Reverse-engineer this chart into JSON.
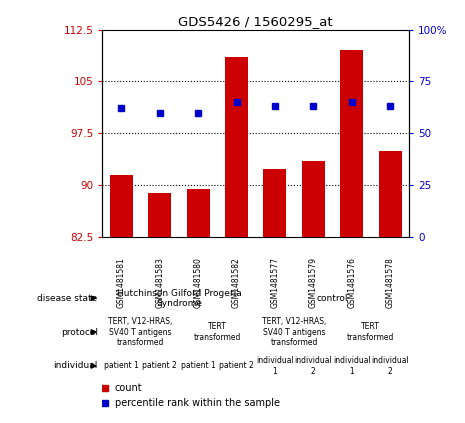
{
  "title": "GDS5426 / 1560295_at",
  "samples": [
    "GSM1481581",
    "GSM1481583",
    "GSM1481580",
    "GSM1481582",
    "GSM1481577",
    "GSM1481579",
    "GSM1481576",
    "GSM1481578"
  ],
  "counts": [
    91.5,
    88.8,
    89.5,
    108.5,
    92.3,
    93.5,
    109.5,
    95.0
  ],
  "percentiles": [
    62,
    60,
    60,
    65,
    63,
    63,
    65,
    63
  ],
  "ymin": 82.5,
  "ymax": 112.5,
  "yticks": [
    82.5,
    90,
    97.5,
    105,
    112.5
  ],
  "y2ticks": [
    0,
    25,
    50,
    75,
    100
  ],
  "bar_color": "#cc0000",
  "dot_color": "#0000cc",
  "disease_state_groups": [
    {
      "label": "Hutchinson Gilford Progeria\nSyndrome",
      "start": 0,
      "end": 4,
      "color": "#99dd99"
    },
    {
      "label": "control",
      "start": 4,
      "end": 8,
      "color": "#66dd66"
    }
  ],
  "protocol_groups": [
    {
      "label": "TERT, V12-HRAS,\nSV40 T antigens\ntransformed",
      "start": 0,
      "end": 2,
      "color": "#ccccee"
    },
    {
      "label": "TERT\ntransformed",
      "start": 2,
      "end": 4,
      "color": "#8888cc"
    },
    {
      "label": "TERT, V12-HRAS,\nSV40 T antigens\ntransformed",
      "start": 4,
      "end": 6,
      "color": "#ccccee"
    },
    {
      "label": "TERT\ntransformed",
      "start": 6,
      "end": 8,
      "color": "#8888cc"
    }
  ],
  "individual_groups": [
    {
      "label": "patient 1",
      "start": 0,
      "end": 1,
      "color": "#ffcccc"
    },
    {
      "label": "patient 2",
      "start": 1,
      "end": 2,
      "color": "#ffcccc"
    },
    {
      "label": "patient 1",
      "start": 2,
      "end": 3,
      "color": "#ffcccc"
    },
    {
      "label": "patient 2",
      "start": 3,
      "end": 4,
      "color": "#ffcccc"
    },
    {
      "label": "individual\n1",
      "start": 4,
      "end": 5,
      "color": "#ff9988"
    },
    {
      "label": "individual\n2",
      "start": 5,
      "end": 6,
      "color": "#ff9988"
    },
    {
      "label": "individual\n1",
      "start": 6,
      "end": 7,
      "color": "#ff9988"
    },
    {
      "label": "individual\n2",
      "start": 7,
      "end": 8,
      "color": "#ff9988"
    }
  ],
  "row_labels": [
    "disease state",
    "protocol",
    "individual"
  ],
  "legend_count_color": "#cc0000",
  "legend_pct_color": "#0000cc"
}
